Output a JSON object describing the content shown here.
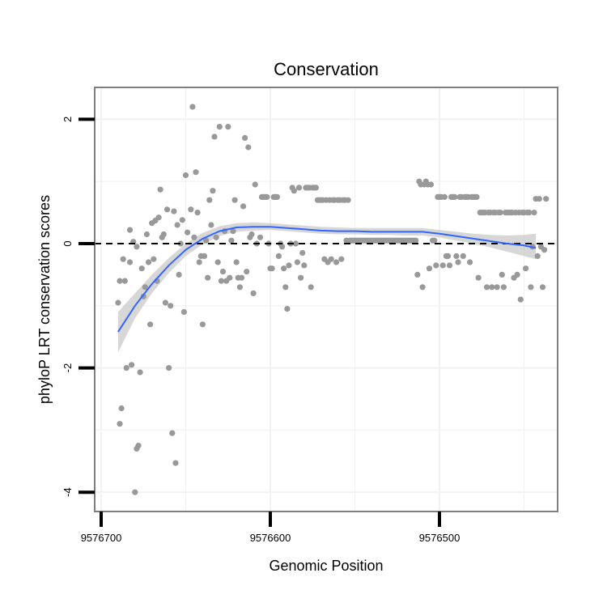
{
  "chart_data": {
    "type": "scatter",
    "title": "Conservation",
    "xlabel": "Genomic Position",
    "ylabel": "phyloP LRT conservation scores",
    "x_reversed": true,
    "xlim": [
      9576700,
      9576420
    ],
    "ylim": [
      -4.2,
      2.5
    ],
    "x_ticks": [
      9576700,
      9576600,
      9576500
    ],
    "x_tick_labels": [
      "9576700",
      "9576600",
      "9576500"
    ],
    "y_ticks": [
      2,
      0,
      -2,
      -4
    ],
    "y_tick_labels": [
      "2",
      "0",
      "-2",
      "-4"
    ],
    "reference_line": {
      "y": 0,
      "style": "dashed"
    },
    "grid": true,
    "colors": {
      "points": "#999999",
      "smooth": "#3366ff",
      "band": "#bdbdbd",
      "frame": "#7f7f7f"
    },
    "points": [
      [
        9576689,
        -0.6
      ],
      [
        9576690,
        -0.95
      ],
      [
        9576689,
        -2.9
      ],
      [
        9576688,
        -2.65
      ],
      [
        9576687,
        -0.25
      ],
      [
        9576686,
        -0.6
      ],
      [
        9576685,
        -2.0
      ],
      [
        9576683,
        0.22
      ],
      [
        9576683,
        -0.3
      ],
      [
        9576682,
        -1.95
      ],
      [
        9576681,
        0.03
      ],
      [
        9576680,
        -4.0
      ],
      [
        9576679,
        -3.3
      ],
      [
        9576678,
        -3.25
      ],
      [
        9576679,
        -0.05
      ],
      [
        9576677,
        -2.07
      ],
      [
        9576676,
        -0.4
      ],
      [
        9576675,
        -0.85
      ],
      [
        9576674,
        -0.7
      ],
      [
        9576673,
        0.15
      ],
      [
        9576672,
        -0.3
      ],
      [
        9576671,
        -1.3
      ],
      [
        9576670,
        0.33
      ],
      [
        9576669,
        -0.25
      ],
      [
        9576668,
        0.37
      ],
      [
        9576667,
        -0.6
      ],
      [
        9576666,
        0.42
      ],
      [
        9576665,
        0.87
      ],
      [
        9576664,
        0.1
      ],
      [
        9576663,
        0.15
      ],
      [
        9576662,
        -0.95
      ],
      [
        9576661,
        0.55
      ],
      [
        9576660,
        -2.0
      ],
      [
        9576659,
        -1.0
      ],
      [
        9576658,
        -3.05
      ],
      [
        9576657,
        0.52
      ],
      [
        9576656,
        -3.53
      ],
      [
        9576655,
        0.3
      ],
      [
        9576654,
        -0.5
      ],
      [
        9576653,
        0.0
      ],
      [
        9576652,
        0.38
      ],
      [
        9576651,
        -1.1
      ],
      [
        9576650,
        1.1
      ],
      [
        9576649,
        0.18
      ],
      [
        9576647,
        0.55
      ],
      [
        9576646,
        2.2
      ],
      [
        9576645,
        0.1
      ],
      [
        9576644,
        1.15
      ],
      [
        9576643,
        0.5
      ],
      [
        9576642,
        -0.3
      ],
      [
        9576641,
        -0.2
      ],
      [
        9576640,
        -1.3
      ],
      [
        9576639,
        -0.2
      ],
      [
        9576638,
        0.05
      ],
      [
        9576637,
        -0.55
      ],
      [
        9576636,
        0.7
      ],
      [
        9576635,
        0.3
      ],
      [
        9576634,
        0.85
      ],
      [
        9576633,
        1.72
      ],
      [
        9576632,
        0.1
      ],
      [
        9576631,
        -0.3
      ],
      [
        9576630,
        1.88
      ],
      [
        9576629,
        -0.6
      ],
      [
        9576628,
        -0.45
      ],
      [
        9576627,
        0.2
      ],
      [
        9576626,
        -0.6
      ],
      [
        9576625,
        1.88
      ],
      [
        9576624,
        -0.55
      ],
      [
        9576623,
        0.05
      ],
      [
        9576622,
        0.2
      ],
      [
        9576621,
        0.7
      ],
      [
        9576620,
        -0.3
      ],
      [
        9576619,
        -0.55
      ],
      [
        9576618,
        -0.7
      ],
      [
        9576617,
        -0.55
      ],
      [
        9576616,
        0.6
      ],
      [
        9576615,
        1.7
      ],
      [
        9576614,
        -0.45
      ],
      [
        9576613,
        1.55
      ],
      [
        9576612,
        0.1
      ],
      [
        9576611,
        0.15
      ],
      [
        9576610,
        -0.8
      ],
      [
        9576609,
        0.95
      ],
      [
        9576608,
        0.0
      ],
      [
        9576606,
        0.1
      ],
      [
        9576605,
        0.75
      ],
      [
        9576604,
        0.75
      ],
      [
        9576603,
        0.75
      ],
      [
        9576602,
        0.75
      ],
      [
        9576601,
        0.0
      ],
      [
        9576600,
        -0.4
      ],
      [
        9576599,
        -0.4
      ],
      [
        9576598,
        0.75
      ],
      [
        9576597,
        0.75
      ],
      [
        9576596,
        0.75
      ],
      [
        9576595,
        -0.2
      ],
      [
        9576594,
        0.0
      ],
      [
        9576593,
        -0.05
      ],
      [
        9576592,
        -0.4
      ],
      [
        9576591,
        -0.7
      ],
      [
        9576590,
        -1.05
      ],
      [
        9576589,
        -0.35
      ],
      [
        9576588,
        0.0
      ],
      [
        9576587,
        0.9
      ],
      [
        9576586,
        0.85
      ],
      [
        9576585,
        0.0
      ],
      [
        9576584,
        -0.3
      ],
      [
        9576583,
        0.9
      ],
      [
        9576582,
        -0.55
      ],
      [
        9576581,
        -0.15
      ],
      [
        9576580,
        -0.35
      ],
      [
        9576579,
        0.9
      ],
      [
        9576578,
        0.9
      ],
      [
        9576577,
        0.9
      ],
      [
        9576576,
        -0.7
      ],
      [
        9576575,
        0.9
      ],
      [
        9576574,
        0.9
      ],
      [
        9576573,
        0.9
      ],
      [
        9576572,
        0.7
      ],
      [
        9576571,
        0.7
      ],
      [
        9576570,
        0.7
      ],
      [
        9576569,
        0.7
      ],
      [
        9576568,
        -0.25
      ],
      [
        9576567,
        0.7
      ],
      [
        9576566,
        -0.3
      ],
      [
        9576565,
        0.7
      ],
      [
        9576564,
        -0.25
      ],
      [
        9576563,
        0.7
      ],
      [
        9576562,
        0.7
      ],
      [
        9576561,
        -0.3
      ],
      [
        9576560,
        0.7
      ],
      [
        9576559,
        0.7
      ],
      [
        9576558,
        -0.25
      ],
      [
        9576557,
        0.7
      ],
      [
        9576556,
        0.7
      ],
      [
        9576555,
        0.05
      ],
      [
        9576554,
        0.7
      ],
      [
        9576553,
        0.05
      ],
      [
        9576552,
        0.05
      ],
      [
        9576551,
        0.05
      ],
      [
        9576550,
        0.05
      ],
      [
        9576549,
        0.05
      ],
      [
        9576548,
        0.05
      ],
      [
        9576547,
        0.05
      ],
      [
        9576546,
        0.05
      ],
      [
        9576545,
        0.05
      ],
      [
        9576544,
        0.05
      ],
      [
        9576543,
        0.05
      ],
      [
        9576542,
        0.05
      ],
      [
        9576541,
        0.05
      ],
      [
        9576540,
        0.05
      ],
      [
        9576539,
        0.05
      ],
      [
        9576538,
        0.05
      ],
      [
        9576537,
        0.05
      ],
      [
        9576536,
        0.05
      ],
      [
        9576535,
        0.05
      ],
      [
        9576534,
        0.05
      ],
      [
        9576533,
        0.05
      ],
      [
        9576532,
        0.05
      ],
      [
        9576531,
        0.05
      ],
      [
        9576530,
        0.05
      ],
      [
        9576529,
        0.05
      ],
      [
        9576528,
        0.05
      ],
      [
        9576527,
        0.05
      ],
      [
        9576526,
        0.05
      ],
      [
        9576525,
        0.05
      ],
      [
        9576524,
        0.05
      ],
      [
        9576523,
        0.05
      ],
      [
        9576522,
        0.05
      ],
      [
        9576521,
        0.05
      ],
      [
        9576520,
        0.05
      ],
      [
        9576519,
        0.05
      ],
      [
        9576518,
        0.05
      ],
      [
        9576517,
        0.05
      ],
      [
        9576516,
        0.05
      ],
      [
        9576515,
        0.05
      ],
      [
        9576514,
        0.05
      ],
      [
        9576513,
        -0.5
      ],
      [
        9576512,
        1.0
      ],
      [
        9576511,
        0.95
      ],
      [
        9576510,
        -0.7
      ],
      [
        9576509,
        0.95
      ],
      [
        9576508,
        1.0
      ],
      [
        9576507,
        0.95
      ],
      [
        9576506,
        -0.4
      ],
      [
        9576505,
        0.95
      ],
      [
        9576504,
        0.05
      ],
      [
        9576503,
        0.05
      ],
      [
        9576502,
        -0.35
      ],
      [
        9576501,
        0.75
      ],
      [
        9576500,
        0.75
      ],
      [
        9576499,
        0.75
      ],
      [
        9576498,
        -0.35
      ],
      [
        9576497,
        0.75
      ],
      [
        9576496,
        -0.2
      ],
      [
        9576495,
        -0.2
      ],
      [
        9576494,
        -0.35
      ],
      [
        9576493,
        0.75
      ],
      [
        9576492,
        0.75
      ],
      [
        9576491,
        0.75
      ],
      [
        9576490,
        -0.2
      ],
      [
        9576489,
        -0.3
      ],
      [
        9576488,
        0.75
      ],
      [
        9576487,
        0.75
      ],
      [
        9576486,
        -0.2
      ],
      [
        9576485,
        0.75
      ],
      [
        9576484,
        0.75
      ],
      [
        9576483,
        0.75
      ],
      [
        9576482,
        -0.3
      ],
      [
        9576481,
        0.75
      ],
      [
        9576480,
        0.75
      ],
      [
        9576479,
        0.75
      ],
      [
        9576478,
        0.75
      ],
      [
        9576477,
        -0.55
      ],
      [
        9576476,
        0.5
      ],
      [
        9576475,
        0.5
      ],
      [
        9576474,
        0.5
      ],
      [
        9576473,
        0.5
      ],
      [
        9576472,
        -0.7
      ],
      [
        9576471,
        0.5
      ],
      [
        9576470,
        0.5
      ],
      [
        9576469,
        -0.7
      ],
      [
        9576468,
        0.5
      ],
      [
        9576467,
        0.5
      ],
      [
        9576466,
        -0.7
      ],
      [
        9576465,
        0.5
      ],
      [
        9576464,
        0.5
      ],
      [
        9576463,
        -0.5
      ],
      [
        9576462,
        -0.7
      ],
      [
        9576461,
        0.5
      ],
      [
        9576460,
        0.5
      ],
      [
        9576459,
        0.5
      ],
      [
        9576458,
        0.5
      ],
      [
        9576457,
        0.5
      ],
      [
        9576456,
        -0.55
      ],
      [
        9576455,
        0.5
      ],
      [
        9576454,
        -0.5
      ],
      [
        9576453,
        0.5
      ],
      [
        9576452,
        -0.9
      ],
      [
        9576451,
        0.5
      ],
      [
        9576450,
        0.5
      ],
      [
        9576449,
        -0.4
      ],
      [
        9576448,
        0.5
      ],
      [
        9576447,
        0.5
      ],
      [
        9576446,
        -0.7
      ],
      [
        9576445,
        -0.05
      ],
      [
        9576444,
        0.5
      ],
      [
        9576443,
        0.72
      ],
      [
        9576442,
        -0.2
      ],
      [
        9576441,
        0.72
      ],
      [
        9576440,
        -0.05
      ],
      [
        9576439,
        -0.7
      ],
      [
        9576438,
        -0.1
      ],
      [
        9576437,
        0.72
      ]
    ],
    "smooth_x": [
      9576690,
      9576680,
      9576670,
      9576660,
      9576650,
      9576640,
      9576630,
      9576620,
      9576610,
      9576600,
      9576590,
      9576580,
      9576570,
      9576560,
      9576550,
      9576540,
      9576530,
      9576520,
      9576510,
      9576500,
      9576490,
      9576480,
      9576470,
      9576460,
      9576450,
      9576443
    ],
    "smooth_y": [
      -1.42,
      -1.0,
      -0.65,
      -0.35,
      -0.1,
      0.08,
      0.2,
      0.26,
      0.27,
      0.27,
      0.25,
      0.23,
      0.21,
      0.2,
      0.2,
      0.19,
      0.19,
      0.19,
      0.19,
      0.16,
      0.12,
      0.08,
      0.04,
      0.0,
      -0.03,
      -0.07
    ],
    "smooth_lower": [
      -1.75,
      -1.2,
      -0.8,
      -0.47,
      -0.2,
      -0.01,
      0.12,
      0.19,
      0.21,
      0.22,
      0.2,
      0.18,
      0.16,
      0.15,
      0.15,
      0.14,
      0.14,
      0.13,
      0.13,
      0.1,
      0.05,
      0.0,
      -0.06,
      -0.13,
      -0.2,
      -0.25
    ],
    "smooth_upper": [
      -1.1,
      -0.8,
      -0.5,
      -0.23,
      0.0,
      0.17,
      0.28,
      0.33,
      0.34,
      0.33,
      0.31,
      0.29,
      0.27,
      0.26,
      0.25,
      0.25,
      0.25,
      0.25,
      0.25,
      0.22,
      0.19,
      0.16,
      0.14,
      0.13,
      0.14,
      0.16
    ]
  }
}
